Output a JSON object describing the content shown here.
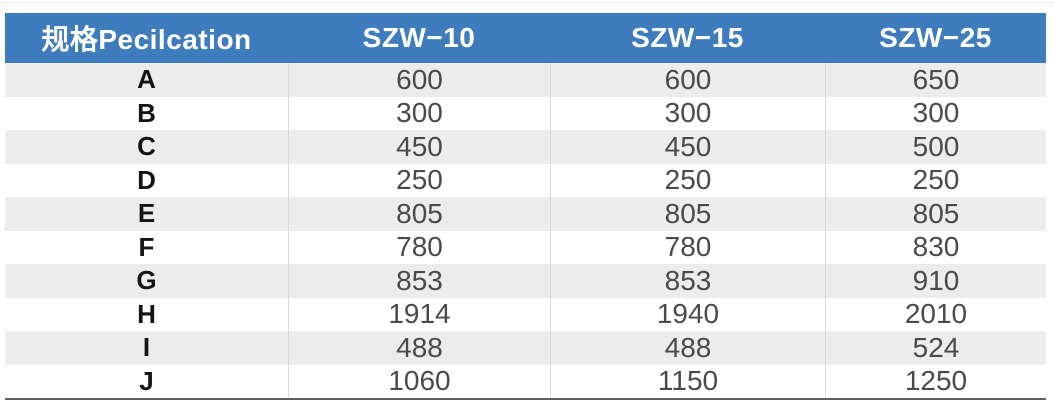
{
  "chart_data": {
    "type": "table",
    "columns": [
      "规格Pecilcation",
      "SZW−10",
      "SZW−15",
      "SZW−25"
    ],
    "rows": [
      [
        "A",
        600,
        600,
        650
      ],
      [
        "B",
        300,
        300,
        300
      ],
      [
        "C",
        450,
        450,
        500
      ],
      [
        "D",
        250,
        250,
        250
      ],
      [
        "E",
        805,
        805,
        805
      ],
      [
        "F",
        780,
        780,
        830
      ],
      [
        "G",
        853,
        853,
        910
      ],
      [
        "H",
        1914,
        1940,
        2010
      ],
      [
        "I",
        488,
        488,
        524
      ],
      [
        "J",
        1060,
        1150,
        1250
      ]
    ],
    "layout_hints": {
      "header_style": "blue bar, white bold text, all cells centered",
      "striping": "odd body rows light gray, even rows white",
      "grid": "vertical dividers between body columns only, heavy rule under last row"
    }
  },
  "table": {
    "header": {
      "spec": "规格Pecilcation",
      "c1": "SZW−10",
      "c2": "SZW−15",
      "c3": "SZW−25"
    },
    "rows": [
      {
        "spec": "A",
        "v1": "600",
        "v2": "600",
        "v3": "650"
      },
      {
        "spec": "B",
        "v1": "300",
        "v2": "300",
        "v3": "300"
      },
      {
        "spec": "C",
        "v1": "450",
        "v2": "450",
        "v3": "500"
      },
      {
        "spec": "D",
        "v1": "250",
        "v2": "250",
        "v3": "250"
      },
      {
        "spec": "E",
        "v1": "805",
        "v2": "805",
        "v3": "805"
      },
      {
        "spec": "F",
        "v1": "780",
        "v2": "780",
        "v3": "830"
      },
      {
        "spec": "G",
        "v1": "853",
        "v2": "853",
        "v3": "910"
      },
      {
        "spec": "H",
        "v1": "1914",
        "v2": "1940",
        "v3": "2010"
      },
      {
        "spec": "I",
        "v1": "488",
        "v2": "488",
        "v3": "524"
      },
      {
        "spec": "J",
        "v1": "1060",
        "v2": "1150",
        "v3": "1250"
      }
    ]
  },
  "colors": {
    "header_bg": "#3e7cbe",
    "header_text": "#ffffff",
    "stripe": "#ececec",
    "divider": "#d8d8d8",
    "bottom_rule": "#5f5f5f",
    "top_rule": "#e8ecea",
    "spec_text": "#141414",
    "number_text": "#4a4a4a"
  }
}
